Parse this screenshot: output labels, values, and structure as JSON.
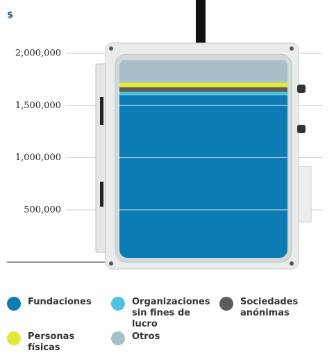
{
  "chart_data": {
    "type": "stacked_bar",
    "y_label": "$",
    "categories": [
      null
    ],
    "series": [
      {
        "name": "Fundaciones",
        "color": "#0b7db4",
        "values": [
          1600000
        ]
      },
      {
        "name": "Organizaciones sin fines de lucro",
        "color": "#4ec3e0",
        "values": [
          30000
        ]
      },
      {
        "name": "Sociedades anónimas",
        "color": "#5b5d5f",
        "values": [
          45000
        ]
      },
      {
        "name": "Personas físicas",
        "color": "#e2e635",
        "values": [
          45000
        ]
      },
      {
        "name": "Otros",
        "color": "#a8c0ca",
        "values": [
          215000
        ]
      }
    ],
    "ylim": [
      0,
      2000000
    ],
    "yticks": [
      {
        "value": 500000,
        "label": "500,000"
      },
      {
        "value": 1000000,
        "label": "1,000,000"
      },
      {
        "value": 1500000,
        "label": "1,500,000"
      },
      {
        "value": 2000000,
        "label": "2,000,000"
      }
    ],
    "grid": true,
    "legend_position": "bottom"
  }
}
